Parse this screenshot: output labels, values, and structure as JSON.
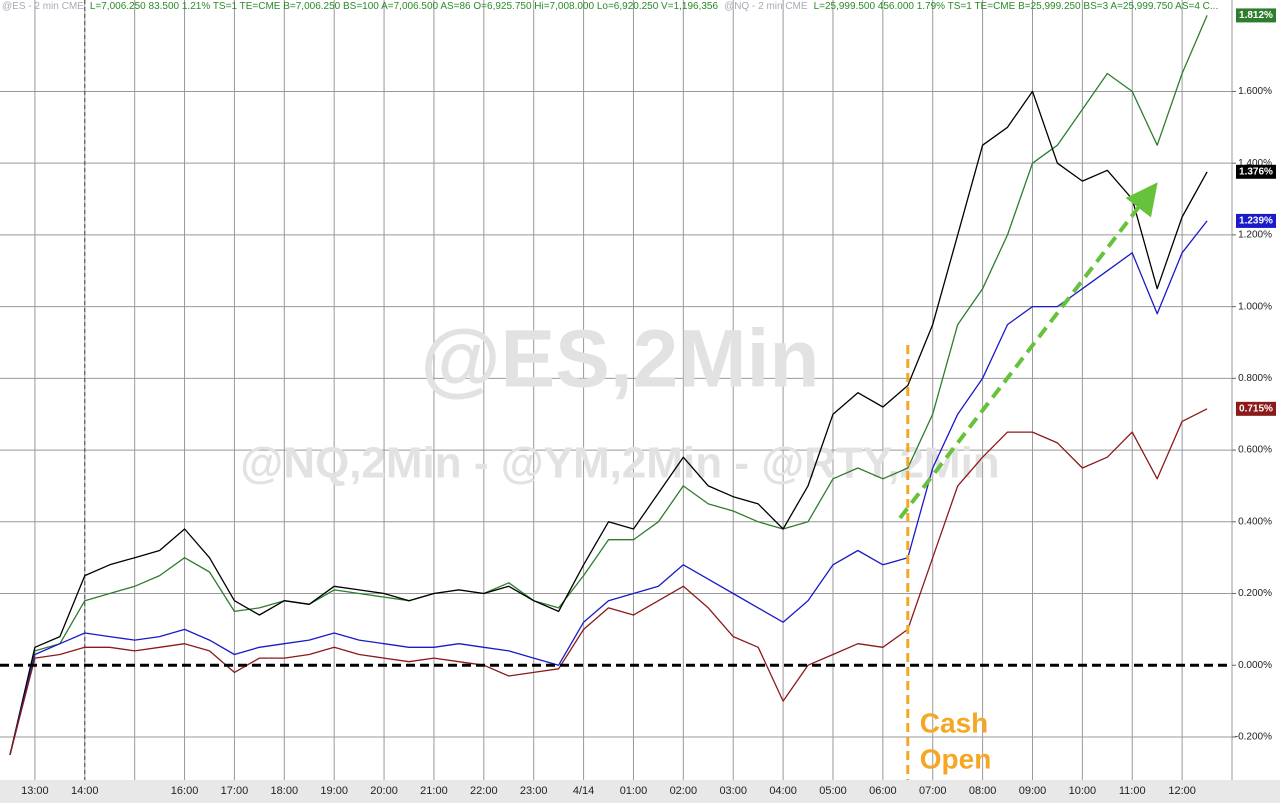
{
  "chart_data": {
    "type": "line",
    "header": [
      "@ES - 2 min CME",
      "L=7,006.250 83.500 1.21% TS=1 TE=CME B=7,006.250 BS=100 A=7,006.500 AS=86 O=6,925.750 Hi=7,008.000 Lo=6,920.250 V=1,196,356",
      "@NQ - 2 min CME",
      "L=25,999.500 456.000 1.79% TS=1 TE=CME B=25,999.250 BS=3 A=25,999.750 AS=4 C..."
    ],
    "watermarks": [
      "@ES,2Min",
      "@NQ,2Min - @YM,2Min - @RTY,2Min"
    ],
    "annotation": [
      "Cash",
      "Open"
    ],
    "categories": [
      null,
      "13:00",
      null,
      "14:00",
      null,
      null,
      null,
      "16:00",
      null,
      "17:00",
      null,
      "18:00",
      null,
      "19:00",
      null,
      "20:00",
      null,
      "21:00",
      null,
      "22:00",
      null,
      "23:00",
      null,
      "4/14",
      null,
      "01:00",
      null,
      "02:00",
      null,
      "03:00",
      null,
      "04:00",
      null,
      "05:00",
      null,
      "06:00",
      null,
      "07:00",
      null,
      "08:00",
      null,
      "09:00",
      null,
      "10:00",
      null,
      "11:00",
      null,
      "12:00",
      null
    ],
    "series": [
      {
        "color": "#2e7d2e",
        "last_label": {
          "value": 1.812,
          "label": "1.812%"
        },
        "values": [
          -0.25,
          0.04,
          0.06,
          0.18,
          0.2,
          0.22,
          0.25,
          0.3,
          0.26,
          0.15,
          0.16,
          0.18,
          0.17,
          0.21,
          0.2,
          0.19,
          0.18,
          0.2,
          0.21,
          0.2,
          0.23,
          0.18,
          0.16,
          0.25,
          0.35,
          0.35,
          0.4,
          0.5,
          0.45,
          0.43,
          0.4,
          0.38,
          0.4,
          0.52,
          0.55,
          0.52,
          0.55,
          0.7,
          0.95,
          1.05,
          1.2,
          1.4,
          1.45,
          1.55,
          1.65,
          1.6,
          1.45,
          1.65,
          1.812
        ]
      },
      {
        "color": "#000000",
        "last_label": {
          "value": 1.376,
          "label": "1.376%"
        },
        "values": [
          -0.25,
          0.05,
          0.08,
          0.25,
          0.28,
          0.3,
          0.32,
          0.38,
          0.3,
          0.18,
          0.14,
          0.18,
          0.17,
          0.22,
          0.21,
          0.2,
          0.18,
          0.2,
          0.21,
          0.2,
          0.22,
          0.18,
          0.15,
          0.28,
          0.4,
          0.38,
          0.48,
          0.58,
          0.5,
          0.47,
          0.45,
          0.38,
          0.5,
          0.7,
          0.76,
          0.72,
          0.78,
          0.95,
          1.2,
          1.45,
          1.5,
          1.6,
          1.4,
          1.35,
          1.38,
          1.3,
          1.05,
          1.25,
          1.376
        ]
      },
      {
        "color": "#1a1ac8",
        "last_label": {
          "value": 1.239,
          "label": "1.239%"
        },
        "values": [
          -0.25,
          0.03,
          0.06,
          0.09,
          0.08,
          0.07,
          0.08,
          0.1,
          0.07,
          0.03,
          0.05,
          0.06,
          0.07,
          0.09,
          0.07,
          0.06,
          0.05,
          0.05,
          0.06,
          0.05,
          0.04,
          0.02,
          0.0,
          0.12,
          0.18,
          0.2,
          0.22,
          0.28,
          0.24,
          0.2,
          0.16,
          0.12,
          0.18,
          0.28,
          0.32,
          0.28,
          0.3,
          0.55,
          0.7,
          0.8,
          0.95,
          1.0,
          1.0,
          1.05,
          1.1,
          1.15,
          0.98,
          1.15,
          1.239
        ]
      },
      {
        "color": "#8b1a1a",
        "last_label": {
          "value": 0.715,
          "label": "0.715%"
        },
        "values": [
          -0.25,
          0.02,
          0.03,
          0.05,
          0.05,
          0.04,
          0.05,
          0.06,
          0.04,
          -0.02,
          0.02,
          0.02,
          0.03,
          0.05,
          0.03,
          0.02,
          0.01,
          0.02,
          0.01,
          0.0,
          -0.03,
          -0.02,
          -0.01,
          0.1,
          0.16,
          0.14,
          0.18,
          0.22,
          0.16,
          0.08,
          0.05,
          -0.1,
          0.0,
          0.03,
          0.06,
          0.05,
          0.1,
          0.3,
          0.5,
          0.58,
          0.65,
          0.65,
          0.62,
          0.55,
          0.58,
          0.65,
          0.52,
          0.68,
          0.715
        ]
      }
    ],
    "ylim": [
      -0.32,
      1.855
    ],
    "yticks": [
      {
        "value": -0.2,
        "label": "-0.200%"
      },
      {
        "value": 0,
        "label": "0.000%"
      },
      {
        "value": 0.2,
        "label": "0.200%"
      },
      {
        "value": 0.4,
        "label": "0.400%"
      },
      {
        "value": 0.6,
        "label": "0.600%"
      },
      {
        "value": 0.8,
        "label": "0.800%"
      },
      {
        "value": 1.0,
        "label": "1.000%"
      },
      {
        "value": 1.2,
        "label": "1.200%"
      },
      {
        "value": 1.4,
        "label": "1.400%"
      },
      {
        "value": 1.6,
        "label": "1.600%"
      }
    ],
    "grid": true
  }
}
